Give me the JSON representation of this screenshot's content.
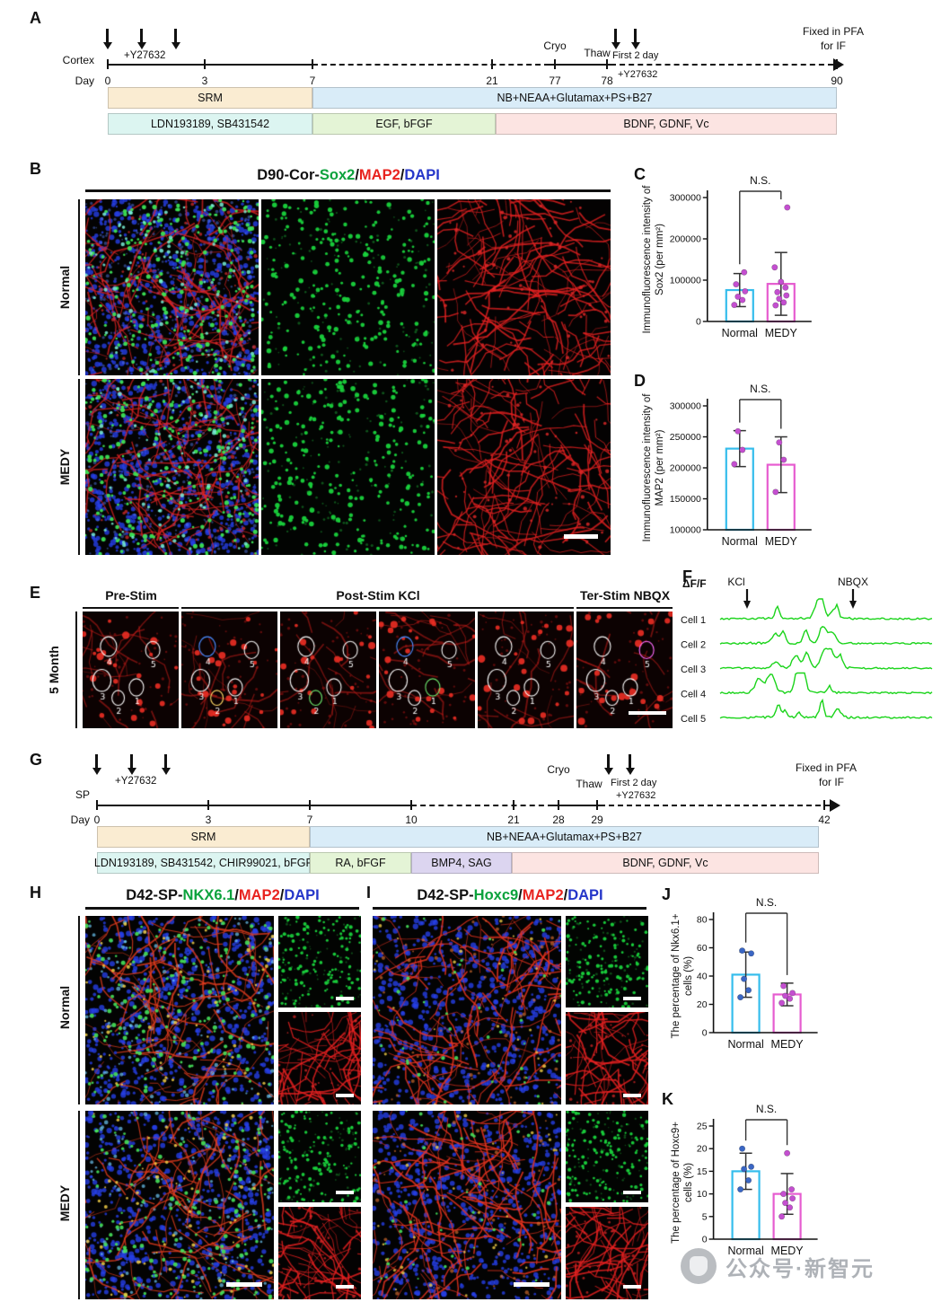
{
  "colors": {
    "normal_bar": "#35bdec",
    "medy_bar": "#e65cd0",
    "sox2_green": "#0ba23c",
    "map2_red": "#e8231f",
    "dapi_blue": "#2536c9",
    "trace_green": "#1bd41b",
    "stage_srm": "#faecd2",
    "stage_nb": "#d9ecf8",
    "stage_ldn": "#dcf5f1",
    "stage_egf": "#e4f4d6",
    "stage_bdnf": "#fce4e2",
    "stage_bmp4": "#dcd5f0"
  },
  "A": {
    "label": "A",
    "cortex": "Cortex",
    "day": "Day",
    "y27632": "+Y27632",
    "cryo": "Cryo",
    "thaw": "Thaw",
    "f2d1": "First 2 day",
    "f2d2": "+Y27632",
    "fix1": "Fixed in PFA",
    "fix2": "for IF",
    "days": [
      "0",
      "3",
      "7",
      "21",
      "77",
      "78",
      "90"
    ],
    "srm": "SRM",
    "nb": "NB+NEAA+Glutamax+PS+B27",
    "ldn": "LDN193189, SB431542",
    "egf": "EGF, bFGF",
    "bdnf": "BDNF, GDNF, Vc"
  },
  "B": {
    "label": "B",
    "prefix": "D90-Cor-",
    "green": "Sox2",
    "slash": "/",
    "red": "MAP2",
    "blue": "DAPI",
    "normal": "Normal",
    "medy": "MEDY"
  },
  "C": {
    "label": "C"
  },
  "D": {
    "label": "D"
  },
  "E": {
    "label": "E",
    "month": "5 Month",
    "pre": "Pre-Stim",
    "post": "Post-Stim KCl",
    "ter": "Ter-Stim NBQX",
    "nums": [
      "1",
      "2",
      "3",
      "4",
      "5"
    ]
  },
  "F": {
    "label": "F"
  },
  "G": {
    "label": "G",
    "sp": "SP",
    "day": "Day",
    "y27632": "+Y27632",
    "cryo": "Cryo",
    "thaw": "Thaw",
    "f2d1": "First 2 day",
    "f2d2": "+Y27632",
    "fix1": "Fixed in PFA",
    "fix2": "for IF",
    "days": [
      "0",
      "3",
      "7",
      "10",
      "21",
      "28",
      "29",
      "42"
    ],
    "srm": "SRM",
    "nb": "NB+NEAA+Glutamax+PS+B27",
    "ldn": "LDN193189, SB431542, CHIR99021, bFGF",
    "ra": "RA, bFGF",
    "bmp": "BMP4, SAG",
    "bdnf": "BDNF, GDNF, Vc"
  },
  "H": {
    "label": "H",
    "prefix": "D42-SP-",
    "green": "NKX6.1",
    "slash": "/",
    "red": "MAP2",
    "blue": "DAPI",
    "normal": "Normal",
    "medy": "MEDY"
  },
  "I": {
    "label": "I",
    "prefix": "D42-SP-",
    "green": "Hoxc9",
    "slash": "/",
    "red": "MAP2",
    "blue": "DAPI"
  },
  "J": {
    "label": "J"
  },
  "K": {
    "label": "K"
  },
  "watermark": {
    "text": "公众号·新智元"
  },
  "chart_data": [
    {
      "id": "C",
      "type": "bar",
      "ylabel_lines": [
        "Immunofluorescence intensity of",
        "Sox2  (per mm²)"
      ],
      "categories": [
        "Normal",
        "MEDY"
      ],
      "series_colors": [
        "#35bdec",
        "#e65cd0"
      ],
      "point_colors": [
        "#c44fd0",
        "#c44fd0"
      ],
      "means": [
        76000,
        91000
      ],
      "sd": [
        40000,
        76000
      ],
      "points": [
        [
          40000,
          52000,
          60000,
          73000,
          90000,
          119000
        ],
        [
          39000,
          46000,
          55000,
          63000,
          71000,
          82000,
          96000,
          131000,
          276000
        ]
      ],
      "ylim": [
        0,
        300000
      ],
      "yticks": [
        0,
        100000,
        200000,
        300000
      ],
      "sig": "N.S."
    },
    {
      "id": "D",
      "type": "bar",
      "ylabel_lines": [
        "Immunofluorescence intensity of",
        "MAP2  (per mm²)"
      ],
      "categories": [
        "Normal",
        "MEDY"
      ],
      "series_colors": [
        "#35bdec",
        "#e65cd0"
      ],
      "point_colors": [
        "#c44fd0",
        "#c44fd0"
      ],
      "means": [
        231000,
        205000
      ],
      "sd": [
        29000,
        45000
      ],
      "points": [
        [
          206000,
          229000,
          259000
        ],
        [
          161000,
          213000,
          241000
        ]
      ],
      "ylim": [
        100000,
        300000
      ],
      "yticks": [
        100000,
        150000,
        200000,
        250000,
        300000
      ],
      "sig": "N.S."
    },
    {
      "id": "J",
      "type": "bar",
      "ylabel_lines": [
        "The percentage of Nkx6.1+",
        "cells (%)"
      ],
      "categories": [
        "Normal",
        "MEDY"
      ],
      "series_colors": [
        "#35bdec",
        "#e65cd0"
      ],
      "point_colors": [
        "#3a66c4",
        "#c44fd0"
      ],
      "means": [
        41,
        27
      ],
      "sd": [
        16,
        8
      ],
      "points": [
        [
          25,
          30,
          38,
          56,
          58
        ],
        [
          21,
          24,
          26,
          28,
          33
        ]
      ],
      "ylim": [
        0,
        80
      ],
      "yticks": [
        0,
        20,
        40,
        60,
        80
      ],
      "sig": "N.S."
    },
    {
      "id": "K",
      "type": "bar",
      "ylabel_lines": [
        "The percentage of Hoxc9+",
        "cells (%)"
      ],
      "categories": [
        "Normal",
        "MEDY"
      ],
      "series_colors": [
        "#35bdec",
        "#e65cd0"
      ],
      "point_colors": [
        "#3a66c4",
        "#c44fd0"
      ],
      "means": [
        15,
        10
      ],
      "sd": [
        4,
        4.5
      ],
      "points": [
        [
          11,
          13,
          15.5,
          16,
          20
        ],
        [
          5,
          7,
          8,
          9,
          10,
          11,
          19
        ]
      ],
      "ylim": [
        0,
        25
      ],
      "yticks": [
        0,
        5,
        10,
        15,
        20,
        25
      ],
      "sig": "N.S."
    },
    {
      "id": "F",
      "type": "traces",
      "ylabel": "ΔF/F",
      "annotations": [
        "KCl",
        "NBQX"
      ],
      "cells": [
        "Cell 1",
        "Cell 2",
        "Cell 3",
        "Cell 4",
        "Cell 5"
      ],
      "color": "#1bd41b"
    }
  ]
}
